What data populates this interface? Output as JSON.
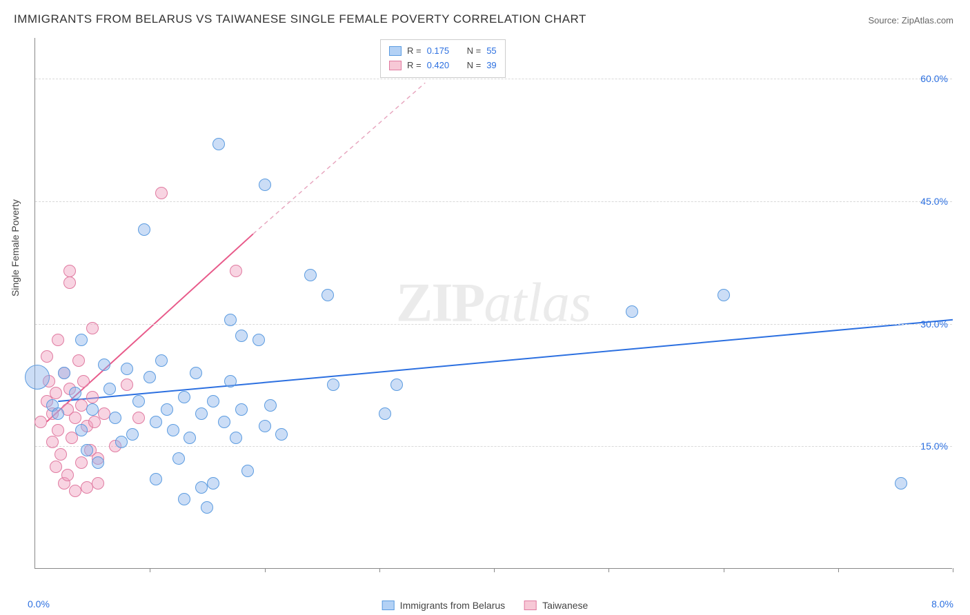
{
  "chart": {
    "type": "scatter",
    "title": "IMMIGRANTS FROM BELARUS VS TAIWANESE SINGLE FEMALE POVERTY CORRELATION CHART",
    "source_label": "Source: ZipAtlas.com",
    "y_axis_label": "Single Female Poverty",
    "watermark_zip": "ZIP",
    "watermark_atlas": "atlas",
    "background_color": "#ffffff",
    "grid_color": "#d8d8d8",
    "axis_color": "#888888",
    "title_fontsize": 17,
    "label_fontsize": 14,
    "xlim": [
      0.0,
      8.0
    ],
    "ylim": [
      0.0,
      65.0
    ],
    "y_ticks": [
      {
        "value": 15.0,
        "label": "15.0%"
      },
      {
        "value": 30.0,
        "label": "30.0%"
      },
      {
        "value": 45.0,
        "label": "45.0%"
      },
      {
        "value": 60.0,
        "label": "60.0%"
      }
    ],
    "x_tick_positions": [
      1.0,
      2.0,
      3.0,
      4.0,
      5.0,
      6.0,
      7.0,
      8.0
    ],
    "x_label_min": "0.0%",
    "x_label_max": "8.0%"
  },
  "legend_top": {
    "r_label": "R  =",
    "n_label": "N  =",
    "rows": [
      {
        "swatch_fill": "#b3d1f5",
        "swatch_stroke": "#5a9be0",
        "r": "0.175",
        "n": "55"
      },
      {
        "swatch_fill": "#f7c8d6",
        "swatch_stroke": "#e07aa0",
        "r": "0.420",
        "n": "39"
      }
    ]
  },
  "legend_bottom": {
    "items": [
      {
        "swatch_fill": "#b3d1f5",
        "swatch_stroke": "#5a9be0",
        "label": "Immigrants from Belarus"
      },
      {
        "swatch_fill": "#f7c8d6",
        "swatch_stroke": "#e07aa0",
        "label": "Taiwanese"
      }
    ]
  },
  "series": {
    "belarus": {
      "marker_fill": "rgba(140,180,235,0.45)",
      "marker_stroke": "#5a9be0",
      "marker_radius": 9,
      "trend_color": "#2b6fe0",
      "trend_line": {
        "x1": 0.2,
        "y1": 20.5,
        "x2": 8.0,
        "y2": 30.5
      },
      "points": [
        {
          "x": 0.02,
          "y": 23.5,
          "r": 18
        },
        {
          "x": 0.15,
          "y": 20.0,
          "r": 9
        },
        {
          "x": 0.2,
          "y": 19.0,
          "r": 9
        },
        {
          "x": 0.25,
          "y": 24.0,
          "r": 9
        },
        {
          "x": 0.35,
          "y": 21.5,
          "r": 9
        },
        {
          "x": 0.4,
          "y": 17.0,
          "r": 9
        },
        {
          "x": 0.4,
          "y": 28.0,
          "r": 9
        },
        {
          "x": 0.45,
          "y": 14.5,
          "r": 9
        },
        {
          "x": 0.5,
          "y": 19.5,
          "r": 9
        },
        {
          "x": 0.55,
          "y": 13.0,
          "r": 9
        },
        {
          "x": 0.6,
          "y": 25.0,
          "r": 9
        },
        {
          "x": 0.65,
          "y": 22.0,
          "r": 9
        },
        {
          "x": 0.7,
          "y": 18.5,
          "r": 9
        },
        {
          "x": 0.75,
          "y": 15.5,
          "r": 9
        },
        {
          "x": 0.8,
          "y": 24.5,
          "r": 9
        },
        {
          "x": 0.85,
          "y": 16.5,
          "r": 9
        },
        {
          "x": 0.9,
          "y": 20.5,
          "r": 9
        },
        {
          "x": 0.95,
          "y": 41.5,
          "r": 9
        },
        {
          "x": 1.0,
          "y": 23.5,
          "r": 9
        },
        {
          "x": 1.05,
          "y": 18.0,
          "r": 9
        },
        {
          "x": 1.05,
          "y": 11.0,
          "r": 9
        },
        {
          "x": 1.1,
          "y": 25.5,
          "r": 9
        },
        {
          "x": 1.15,
          "y": 19.5,
          "r": 9
        },
        {
          "x": 1.2,
          "y": 17.0,
          "r": 9
        },
        {
          "x": 1.25,
          "y": 13.5,
          "r": 9
        },
        {
          "x": 1.3,
          "y": 21.0,
          "r": 9
        },
        {
          "x": 1.3,
          "y": 8.5,
          "r": 9
        },
        {
          "x": 1.35,
          "y": 16.0,
          "r": 9
        },
        {
          "x": 1.4,
          "y": 24.0,
          "r": 9
        },
        {
          "x": 1.45,
          "y": 10.0,
          "r": 9
        },
        {
          "x": 1.45,
          "y": 19.0,
          "r": 9
        },
        {
          "x": 1.5,
          "y": 7.5,
          "r": 9
        },
        {
          "x": 1.55,
          "y": 20.5,
          "r": 9
        },
        {
          "x": 1.55,
          "y": 10.5,
          "r": 9
        },
        {
          "x": 1.6,
          "y": 52.0,
          "r": 9
        },
        {
          "x": 1.65,
          "y": 18.0,
          "r": 9
        },
        {
          "x": 1.7,
          "y": 23.0,
          "r": 9
        },
        {
          "x": 1.7,
          "y": 30.5,
          "r": 9
        },
        {
          "x": 1.75,
          "y": 16.0,
          "r": 9
        },
        {
          "x": 1.8,
          "y": 19.5,
          "r": 9
        },
        {
          "x": 1.8,
          "y": 28.5,
          "r": 9
        },
        {
          "x": 1.85,
          "y": 12.0,
          "r": 9
        },
        {
          "x": 1.95,
          "y": 28.0,
          "r": 9
        },
        {
          "x": 2.0,
          "y": 47.0,
          "r": 9
        },
        {
          "x": 2.0,
          "y": 17.5,
          "r": 9
        },
        {
          "x": 2.05,
          "y": 20.0,
          "r": 9
        },
        {
          "x": 2.15,
          "y": 16.5,
          "r": 9
        },
        {
          "x": 2.4,
          "y": 36.0,
          "r": 9
        },
        {
          "x": 2.55,
          "y": 33.5,
          "r": 9
        },
        {
          "x": 2.6,
          "y": 22.5,
          "r": 9
        },
        {
          "x": 3.05,
          "y": 19.0,
          "r": 9
        },
        {
          "x": 3.15,
          "y": 22.5,
          "r": 9
        },
        {
          "x": 5.2,
          "y": 31.5,
          "r": 9
        },
        {
          "x": 6.0,
          "y": 33.5,
          "r": 9
        },
        {
          "x": 7.55,
          "y": 10.5,
          "r": 9
        }
      ]
    },
    "taiwanese": {
      "marker_fill": "rgba(240,160,190,0.45)",
      "marker_stroke": "#e07aa0",
      "marker_radius": 9,
      "trend_color_solid": "#e85a8a",
      "trend_color_dash": "#e8a8c0",
      "trend_line_solid": {
        "x1": 0.1,
        "y1": 18.0,
        "x2": 1.9,
        "y2": 41.0
      },
      "trend_line_dash": {
        "x1": 1.9,
        "y1": 41.0,
        "x2": 3.4,
        "y2": 59.5
      },
      "points": [
        {
          "x": 0.05,
          "y": 18.0,
          "r": 9
        },
        {
          "x": 0.1,
          "y": 20.5,
          "r": 9
        },
        {
          "x": 0.1,
          "y": 26.0,
          "r": 9
        },
        {
          "x": 0.12,
          "y": 23.0,
          "r": 9
        },
        {
          "x": 0.15,
          "y": 15.5,
          "r": 9
        },
        {
          "x": 0.15,
          "y": 19.0,
          "r": 9
        },
        {
          "x": 0.18,
          "y": 21.5,
          "r": 9
        },
        {
          "x": 0.18,
          "y": 12.5,
          "r": 9
        },
        {
          "x": 0.2,
          "y": 28.0,
          "r": 9
        },
        {
          "x": 0.2,
          "y": 17.0,
          "r": 9
        },
        {
          "x": 0.22,
          "y": 14.0,
          "r": 9
        },
        {
          "x": 0.25,
          "y": 10.5,
          "r": 9
        },
        {
          "x": 0.25,
          "y": 24.0,
          "r": 9
        },
        {
          "x": 0.28,
          "y": 19.5,
          "r": 9
        },
        {
          "x": 0.28,
          "y": 11.5,
          "r": 9
        },
        {
          "x": 0.3,
          "y": 22.0,
          "r": 9
        },
        {
          "x": 0.3,
          "y": 36.5,
          "r": 9
        },
        {
          "x": 0.3,
          "y": 35.0,
          "r": 9
        },
        {
          "x": 0.32,
          "y": 16.0,
          "r": 9
        },
        {
          "x": 0.35,
          "y": 9.5,
          "r": 9
        },
        {
          "x": 0.35,
          "y": 18.5,
          "r": 9
        },
        {
          "x": 0.38,
          "y": 25.5,
          "r": 9
        },
        {
          "x": 0.4,
          "y": 13.0,
          "r": 9
        },
        {
          "x": 0.4,
          "y": 20.0,
          "r": 9
        },
        {
          "x": 0.42,
          "y": 23.0,
          "r": 9
        },
        {
          "x": 0.45,
          "y": 17.5,
          "r": 9
        },
        {
          "x": 0.45,
          "y": 10.0,
          "r": 9
        },
        {
          "x": 0.48,
          "y": 14.5,
          "r": 9
        },
        {
          "x": 0.5,
          "y": 21.0,
          "r": 9
        },
        {
          "x": 0.5,
          "y": 29.5,
          "r": 9
        },
        {
          "x": 0.52,
          "y": 18.0,
          "r": 9
        },
        {
          "x": 0.55,
          "y": 10.5,
          "r": 9
        },
        {
          "x": 0.55,
          "y": 13.5,
          "r": 9
        },
        {
          "x": 0.6,
          "y": 19.0,
          "r": 9
        },
        {
          "x": 0.7,
          "y": 15.0,
          "r": 9
        },
        {
          "x": 0.8,
          "y": 22.5,
          "r": 9
        },
        {
          "x": 0.9,
          "y": 18.5,
          "r": 9
        },
        {
          "x": 1.1,
          "y": 46.0,
          "r": 9
        },
        {
          "x": 1.75,
          "y": 36.5,
          "r": 9
        }
      ]
    }
  }
}
